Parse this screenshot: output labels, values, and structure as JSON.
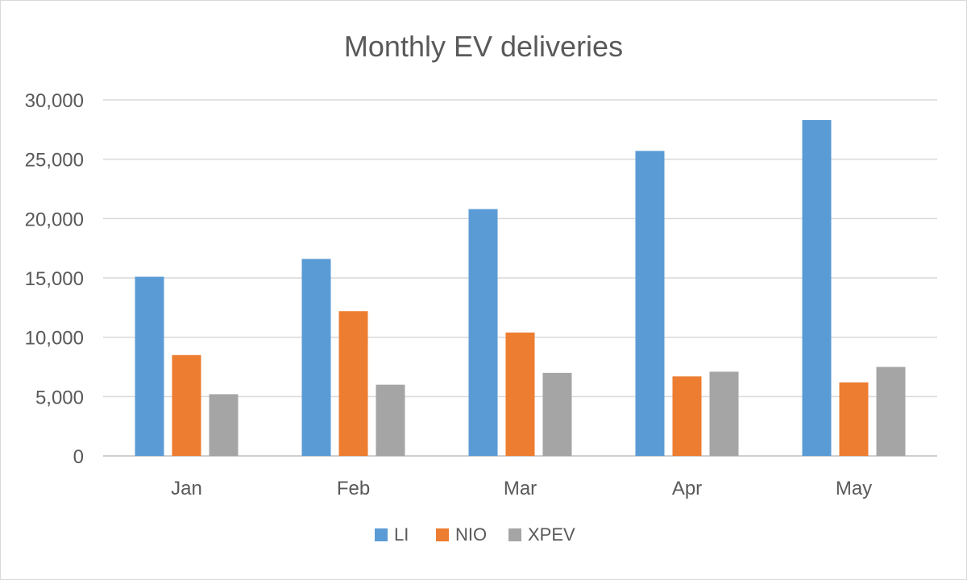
{
  "chart_data": {
    "type": "bar",
    "title": "Monthly EV deliveries",
    "xlabel": "",
    "ylabel": "",
    "categories": [
      "Jan",
      "Feb",
      "Mar",
      "Apr",
      "May"
    ],
    "series": [
      {
        "name": "LI",
        "color": "#5b9bd5",
        "values": [
          15100,
          16600,
          20800,
          25700,
          28300
        ]
      },
      {
        "name": "NIO",
        "color": "#ed7d31",
        "values": [
          8500,
          12200,
          10400,
          6700,
          6200
        ]
      },
      {
        "name": "XPEV",
        "color": "#a5a5a5",
        "values": [
          5200,
          6000,
          7000,
          7100,
          7500
        ]
      }
    ],
    "ylim": [
      0,
      30000
    ],
    "yticks": [
      0,
      5000,
      10000,
      15000,
      20000,
      25000,
      30000
    ],
    "ytick_labels": [
      "0",
      "5,000",
      "10,000",
      "15,000",
      "20,000",
      "25,000",
      "30,000"
    ],
    "grid": true,
    "legend_position": "bottom"
  }
}
